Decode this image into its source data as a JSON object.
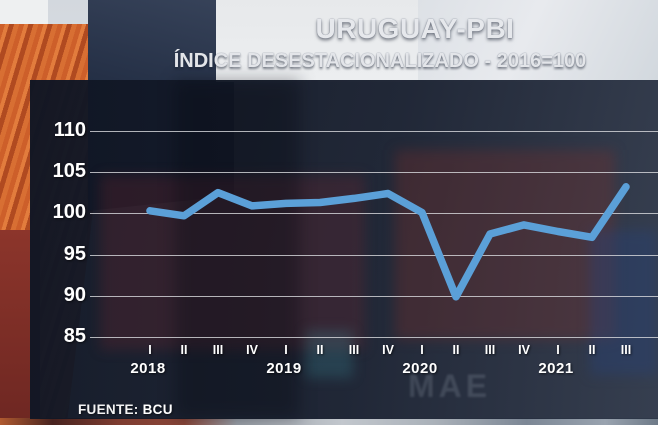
{
  "header": {
    "title": "URUGUAY-PBI",
    "subtitle": "ÍNDICE DESESTACIONALIZADO - 2016=100"
  },
  "footer": {
    "source_label": "FUENTE:",
    "source_value": "BCU"
  },
  "background": {
    "container_brand_text": "MAE"
  },
  "chart_data": {
    "type": "line",
    "title": "URUGUAY-PBI",
    "subtitle": "ÍNDICE DESESTACIONALIZADO - 2016=100",
    "source": "FUENTE: BCU",
    "x_tick_labels": [
      "I",
      "II",
      "III",
      "IV",
      "I",
      "II",
      "III",
      "IV",
      "I",
      "II",
      "III",
      "IV",
      "I",
      "II",
      "III"
    ],
    "years": [
      {
        "label": "2018",
        "quarter_index": 0
      },
      {
        "label": "2019",
        "quarter_index": 4
      },
      {
        "label": "2020",
        "quarter_index": 8
      },
      {
        "label": "2021",
        "quarter_index": 12
      }
    ],
    "series": [
      {
        "name": "PBI índice desestacionalizado 2016=100",
        "values": [
          100.3,
          99.7,
          102.5,
          100.9,
          101.2,
          101.3,
          101.8,
          102.4,
          100.1,
          89.9,
          97.5,
          98.6,
          97.8,
          97.1,
          103.2
        ]
      }
    ],
    "yticks": [
      110,
      105,
      100,
      95,
      90,
      85
    ],
    "ylim": [
      85,
      110
    ],
    "grid": true,
    "legend": "none",
    "line_color": "#5BA0D8",
    "grid_color": "#D9DBDF",
    "label_color": "#FFFFFF"
  }
}
